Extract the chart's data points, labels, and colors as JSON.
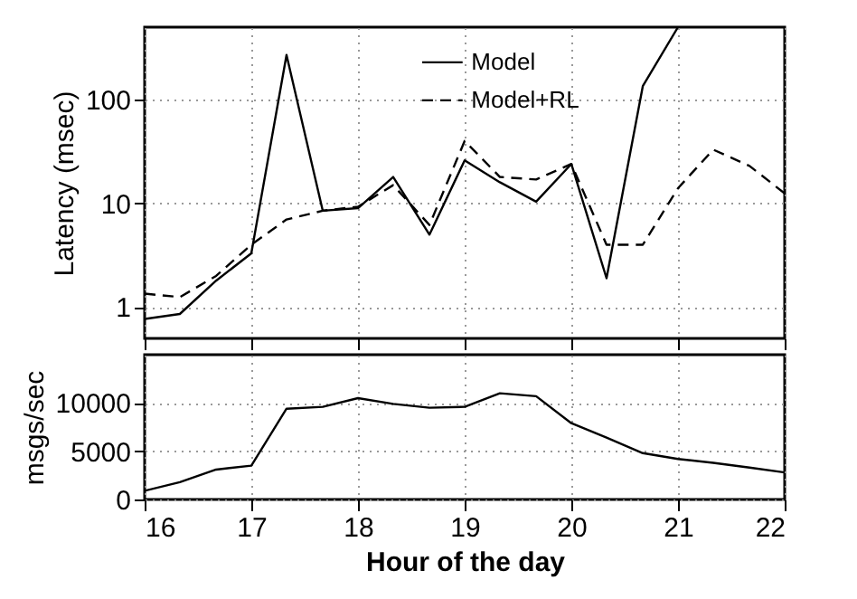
{
  "chart_data": [
    {
      "type": "line",
      "ylabel": "Latency (msec)",
      "log": "y",
      "ylim": [
        0.5,
        500
      ],
      "yticks": [
        1,
        10,
        100
      ],
      "xlim": [
        16,
        22
      ],
      "xticks": [
        16,
        17,
        18,
        19,
        20,
        21,
        22
      ],
      "tick_labels": "y",
      "grid": true,
      "legend": "top right",
      "x": [
        16,
        16.33,
        16.67,
        17,
        17.33,
        17.67,
        18,
        18.33,
        18.67,
        19,
        19.33,
        19.67,
        20,
        20.33,
        20.67,
        21,
        21.33,
        21.67,
        22
      ],
      "series": [
        {
          "name": "Model",
          "color": "#000000",
          "line_style": "solid",
          "values": [
            0.77,
            0.86,
            1.8,
            3.3,
            270,
            8.5,
            9,
            18,
            5,
            26,
            16,
            10.4,
            24,
            1.9,
            135,
            500,
            null,
            null,
            null
          ]
        },
        {
          "name": "Model+RL",
          "color": "#000000",
          "line_style": "dashed",
          "values": [
            1.35,
            1.25,
            2,
            4,
            7,
            8.5,
            9.3,
            15,
            6.2,
            40,
            18,
            17,
            24,
            4,
            4,
            14,
            33,
            23,
            12.5
          ]
        }
      ]
    },
    {
      "type": "line",
      "xlabel": "Hour of the day",
      "ylabel": "msgs/sec",
      "ylim": [
        0,
        15000
      ],
      "yticks": [
        0,
        5000,
        10000
      ],
      "xlim": [
        16,
        22
      ],
      "xticks": [
        16,
        17,
        18,
        19,
        20,
        21,
        22
      ],
      "grid": true,
      "x": [
        16,
        16.33,
        16.67,
        17,
        17.33,
        17.67,
        18,
        18.33,
        18.67,
        19,
        19.33,
        19.67,
        20,
        20.33,
        20.67,
        21,
        21.33,
        21.67,
        22
      ],
      "series": [
        {
          "color": "#000000",
          "line_style": "solid",
          "values": [
            900,
            1800,
            3100,
            3500,
            9400,
            9600,
            10500,
            9900,
            9500,
            9600,
            11000,
            10700,
            7900,
            6400,
            4800,
            4200,
            3800,
            3300,
            2800
          ]
        }
      ]
    }
  ]
}
